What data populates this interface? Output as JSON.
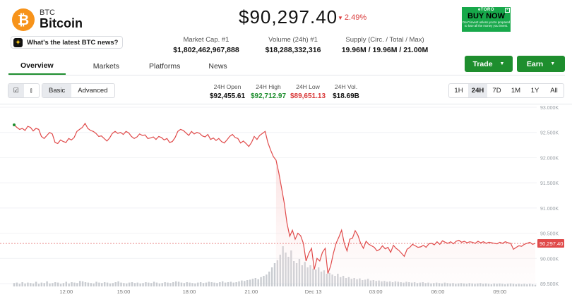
{
  "coin": {
    "symbol": "BTC",
    "name": "Bitcoin",
    "logo_glyph": "₿",
    "logo_color": "#f7931a"
  },
  "news_prompt": "What's the latest BTC news?",
  "price": "$90,297.40",
  "change": "2.49%",
  "change_color": "#d93a3a",
  "market_stats": [
    {
      "label": "Market Cap. #1",
      "value": "$1,802,462,967,888"
    },
    {
      "label": "Volume (24h) #1",
      "value": "$18,288,332,316"
    },
    {
      "label": "Supply (Circ. / Total / Max)",
      "value": "19.96M / 19.96M / 21.00M"
    }
  ],
  "ad": {
    "brand": "eTORO",
    "cta": "BUY NOW",
    "fine_print": "Don't invest unless you're prepared to lose all the money you invest.",
    "color": "#17a84a"
  },
  "actions": {
    "trade": "Trade",
    "earn": "Earn"
  },
  "tabs": [
    "Overview",
    "Markets",
    "Platforms",
    "News"
  ],
  "toolbar": {
    "view_modes": [
      "Basic",
      "Advanced"
    ],
    "ohlc": [
      {
        "label": "24H Open",
        "value": "$92,455.61",
        "color": "#111111"
      },
      {
        "label": "24H High",
        "value": "$92,712.97",
        "color": "#1e8e2e"
      },
      {
        "label": "24H Low",
        "value": "$89,651.13",
        "color": "#d93a3a"
      },
      {
        "label": "24H Vol.",
        "value": "$18.69B",
        "color": "#111111"
      }
    ],
    "ranges": [
      "1H",
      "24H",
      "7D",
      "1M",
      "1Y",
      "All"
    ],
    "active_range": "24H"
  },
  "chart_data": {
    "type": "line",
    "x_ticks": [
      "12:00",
      "15:00",
      "18:00",
      "21:00",
      "Dec 13",
      "03:00",
      "06:00",
      "09:00"
    ],
    "y_ticks": [
      "93.000K",
      "92.500K",
      "92.000K",
      "91.500K",
      "91.000K",
      "90.500K",
      "90.000K",
      "89.500K"
    ],
    "ylim": [
      89500,
      93000
    ],
    "current_label": "90,297.40",
    "current_value": 90297.4,
    "line_color": "#e04a4a",
    "series": [
      {
        "values": [
          92650,
          92600,
          92560,
          92580,
          92540,
          92620,
          92600,
          92530,
          92580,
          92560,
          92420,
          92380,
          92440,
          92500,
          92470,
          92300,
          92280,
          92350,
          92320,
          92300,
          92380,
          92350,
          92400,
          92520,
          92560,
          92600,
          92680,
          92580,
          92540,
          92520,
          92480,
          92420,
          92430,
          92380,
          92330,
          92390,
          92480,
          92520,
          92480,
          92500,
          92460,
          92520,
          92490,
          92420,
          92380,
          92410,
          92470,
          92440,
          92450,
          92380,
          92390,
          92410,
          92360,
          92420,
          92400,
          92350,
          92380,
          92300,
          92320,
          92400,
          92520,
          92560,
          92540,
          92490,
          92440,
          92520,
          92470,
          92500,
          92480,
          92430,
          92410,
          92460,
          92360,
          92390,
          92340,
          92380,
          92320,
          92290,
          92350,
          92420,
          92460,
          92400,
          92380,
          92290,
          92330,
          92280,
          92220,
          92300,
          92420,
          92360,
          92440,
          92480,
          92520,
          92300,
          92150,
          92020,
          91950,
          91700,
          91400,
          91100,
          90700,
          90440,
          90560,
          90380,
          90500,
          90450,
          90300,
          89950,
          90100,
          90200,
          89780,
          90000,
          89950,
          90120,
          90200,
          89700,
          89850,
          90100,
          90300,
          90420,
          90560,
          90300,
          90150,
          90380,
          90400,
          90550,
          90460,
          90300,
          90200,
          90340,
          90280,
          90250,
          90220,
          90150,
          90180,
          90250,
          90190,
          90220,
          90120,
          90260,
          90200,
          90160,
          90100,
          90040,
          90180,
          90220,
          90280,
          90250,
          90220,
          90230,
          90260,
          90220,
          90290,
          90300,
          90270,
          90330,
          90280,
          90350,
          90320,
          90300,
          90330,
          90290,
          90340,
          90360,
          90320,
          90340,
          90310,
          90330,
          90320,
          90300,
          90340,
          90310,
          90330,
          90300,
          90320,
          90310,
          90300,
          90290,
          90320,
          90300,
          90330,
          90310,
          90300,
          90180,
          90220,
          90250,
          90240,
          90280,
          90300,
          90320,
          90280,
          90297.4
        ]
      }
    ],
    "volume": [
      0.08,
      0.09,
      0.06,
      0.1,
      0.07,
      0.09,
      0.08,
      0.07,
      0.11,
      0.06,
      0.09,
      0.08,
      0.12,
      0.07,
      0.08,
      0.1,
      0.09,
      0.06,
      0.08,
      0.11,
      0.07,
      0.1,
      0.09,
      0.08,
      0.13,
      0.12,
      0.1,
      0.09,
      0.08,
      0.07,
      0.11,
      0.09,
      0.08,
      0.1,
      0.09,
      0.07,
      0.08,
      0.1,
      0.12,
      0.09,
      0.08,
      0.07,
      0.09,
      0.1,
      0.08,
      0.09,
      0.07,
      0.08,
      0.1,
      0.09,
      0.08,
      0.11,
      0.09,
      0.07,
      0.08,
      0.1,
      0.09,
      0.08,
      0.1,
      0.12,
      0.11,
      0.09,
      0.08,
      0.1,
      0.09,
      0.08,
      0.07,
      0.09,
      0.1,
      0.08,
      0.09,
      0.11,
      0.1,
      0.09,
      0.08,
      0.1,
      0.12,
      0.09,
      0.1,
      0.11,
      0.09,
      0.1,
      0.12,
      0.14,
      0.13,
      0.15,
      0.16,
      0.18,
      0.2,
      0.17,
      0.22,
      0.25,
      0.28,
      0.35,
      0.45,
      0.55,
      0.62,
      0.75,
      0.95,
      0.8,
      0.7,
      0.85,
      0.6,
      0.55,
      0.65,
      0.5,
      0.58,
      0.45,
      0.5,
      0.42,
      0.4,
      0.45,
      0.35,
      0.38,
      0.3,
      0.32,
      0.28,
      0.25,
      0.3,
      0.22,
      0.25,
      0.2,
      0.22,
      0.18,
      0.2,
      0.17,
      0.19,
      0.15,
      0.16,
      0.18,
      0.14,
      0.15,
      0.13,
      0.14,
      0.12,
      0.13,
      0.11,
      0.12,
      0.1,
      0.12,
      0.11,
      0.1,
      0.09,
      0.11,
      0.1,
      0.09,
      0.1,
      0.08,
      0.09,
      0.1,
      0.08,
      0.09,
      0.07,
      0.08,
      0.09,
      0.08,
      0.07,
      0.09,
      0.08,
      0.07,
      0.08,
      0.06,
      0.07,
      0.08,
      0.07,
      0.06,
      0.08,
      0.07,
      0.06,
      0.07,
      0.08,
      0.06,
      0.07,
      0.06,
      0.05,
      0.07,
      0.06,
      0.07,
      0.06,
      0.05,
      0.06,
      0.07,
      0.06,
      0.05,
      0.06,
      0.05,
      0.06,
      0.05,
      0.06,
      0.05,
      0.04
    ]
  }
}
